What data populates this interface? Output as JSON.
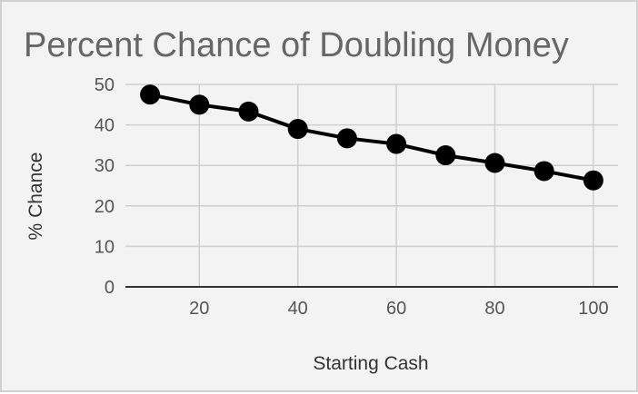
{
  "chart_data": {
    "type": "line",
    "title": "Percent Chance of Doubling Money",
    "xlabel": "Starting Cash",
    "ylabel": "% Chance",
    "xlim": [
      5,
      105
    ],
    "ylim": [
      0,
      50
    ],
    "x_ticks": [
      20,
      40,
      60,
      80,
      100
    ],
    "y_ticks": [
      0,
      10,
      20,
      30,
      40,
      50
    ],
    "grid": true,
    "legend": "none",
    "series": [
      {
        "color": "#000000",
        "x": [
          10,
          20,
          30,
          40,
          50,
          60,
          70,
          80,
          90,
          100
        ],
        "values": [
          47.5,
          45,
          43.3,
          39,
          36.7,
          35.3,
          32.5,
          30.6,
          28.6,
          26.3
        ]
      }
    ]
  }
}
